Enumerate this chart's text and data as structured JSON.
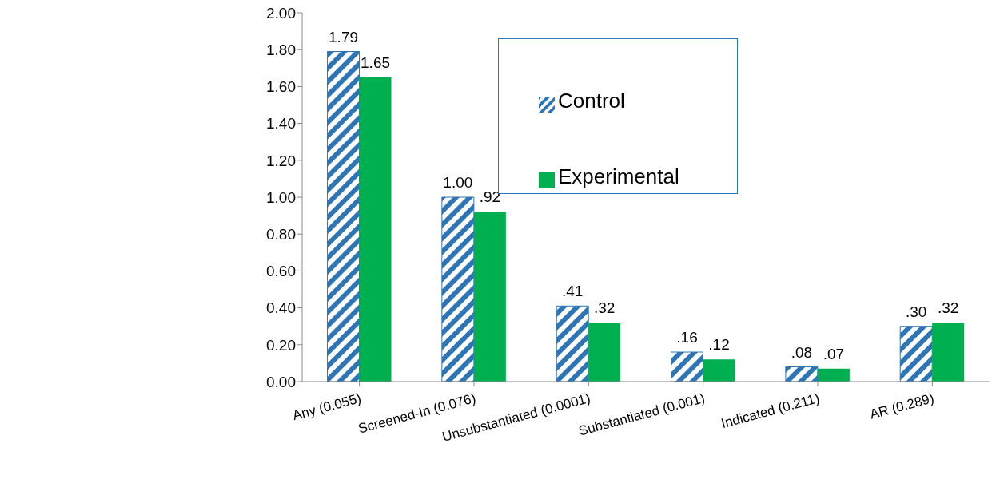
{
  "chart_data": {
    "type": "bar",
    "categories": [
      "Any  (0.055)",
      "Screened-In (0.076)",
      "Unsubstantiated (0.0001)",
      "Substantiated (0.001)",
      "Indicated (0.211)",
      "AR (0.289)"
    ],
    "series": [
      {
        "name": "Control",
        "color": "#2e75b6",
        "values": [
          1.79,
          1.0,
          0.41,
          0.16,
          0.08,
          0.3
        ],
        "value_labels": [
          "1.79",
          "1.00",
          ".41",
          ".16",
          ".08",
          ".30"
        ]
      },
      {
        "name": "Experimental",
        "color": "#00b050",
        "values": [
          1.65,
          0.92,
          0.32,
          0.12,
          0.07,
          0.32
        ],
        "value_labels": [
          "1.65",
          ".92",
          ".32",
          ".12",
          ".07",
          ".32"
        ]
      }
    ],
    "ylim": [
      0,
      2
    ],
    "yticks": [
      {
        "value": 0,
        "label": "0.00"
      },
      {
        "value": 0.2,
        "label": "0.20"
      },
      {
        "value": 0.4,
        "label": "0.40"
      },
      {
        "value": 0.6,
        "label": "0.60"
      },
      {
        "value": 0.8,
        "label": "0.80"
      },
      {
        "value": 1,
        "label": "1.00"
      },
      {
        "value": 1.2,
        "label": "1.20"
      },
      {
        "value": 1.4,
        "label": "1.40"
      },
      {
        "value": 1.6,
        "label": "1.60"
      },
      {
        "value": 1.8,
        "label": "1.80"
      },
      {
        "value": 2,
        "label": "2.00"
      }
    ],
    "legend": "top"
  }
}
